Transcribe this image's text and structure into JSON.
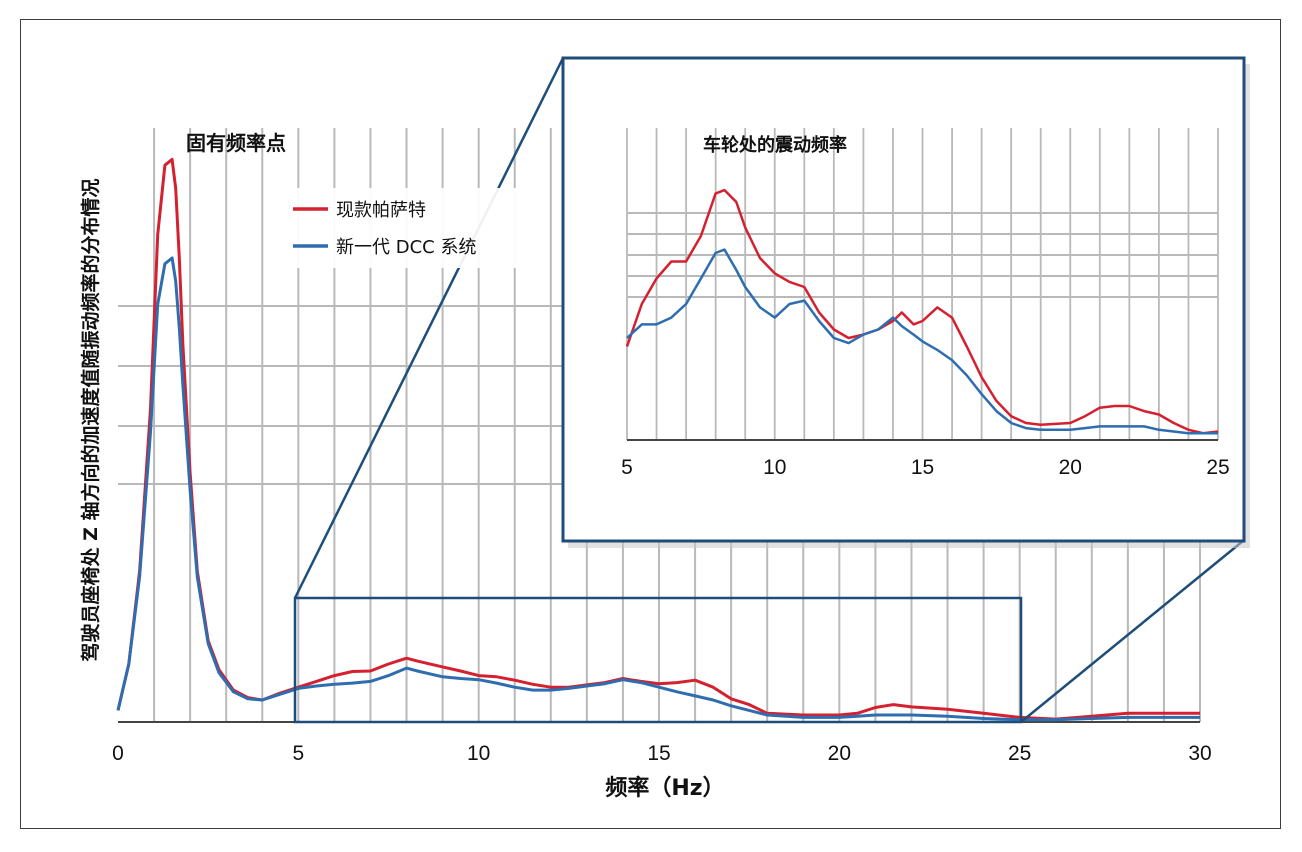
{
  "colors": {
    "current": "#d4202f",
    "dcc": "#2e6db0",
    "frame": "#1f4d7a",
    "grid": "#b9b9b9"
  },
  "chart_data": [
    {
      "type": "line",
      "title": "",
      "xlabel": "频率（Hz）",
      "ylabel": "驾驶员座椅处 Z 轴方向的加速度值随振动频率的分布情况",
      "xlim": [
        0,
        30
      ],
      "xticks": [
        "0",
        "5",
        "10",
        "15",
        "20",
        "25",
        "30"
      ],
      "annotation": "固有频率点",
      "legend": {
        "placement": "top-center",
        "entries": [
          "现款帕萨特",
          "新一代 DCC 系统"
        ]
      },
      "series": [
        {
          "name": "现款帕萨特",
          "color": "#d4202f",
          "x": [
            0,
            0.3,
            0.6,
            0.9,
            1.1,
            1.3,
            1.5,
            1.6,
            1.7,
            1.8,
            2.0,
            2.2,
            2.5,
            2.8,
            3.2,
            3.6,
            4.0,
            4.5,
            5.0,
            5.5,
            6.0,
            6.5,
            7.0,
            7.5,
            8.0,
            8.3,
            9.0,
            9.5,
            10.0,
            10.5,
            11.0,
            11.5,
            12.0,
            12.5,
            13.0,
            13.5,
            14.0,
            14.5,
            15.0,
            15.5,
            16.0,
            16.5,
            17.0,
            17.5,
            18.0,
            19.0,
            20.0,
            20.5,
            21.0,
            21.5,
            22.0,
            23.0,
            24.0,
            25.0,
            26.0,
            27.0,
            28.0,
            29.0,
            30.0
          ],
          "y": [
            0.2,
            1.0,
            2.6,
            5.4,
            8.4,
            9.6,
            9.7,
            9.2,
            8.0,
            6.5,
            4.3,
            2.6,
            1.4,
            0.9,
            0.55,
            0.42,
            0.38,
            0.5,
            0.6,
            0.7,
            0.8,
            0.87,
            0.88,
            1.0,
            1.1,
            1.05,
            0.95,
            0.88,
            0.8,
            0.78,
            0.72,
            0.65,
            0.6,
            0.6,
            0.64,
            0.68,
            0.75,
            0.7,
            0.66,
            0.68,
            0.72,
            0.6,
            0.4,
            0.3,
            0.15,
            0.12,
            0.12,
            0.15,
            0.25,
            0.3,
            0.26,
            0.22,
            0.15,
            0.08,
            0.05,
            0.1,
            0.15,
            0.15,
            0.15
          ]
        },
        {
          "name": "新一代 DCC 系统",
          "color": "#2e6db0",
          "x": [
            0,
            0.3,
            0.6,
            0.9,
            1.1,
            1.3,
            1.5,
            1.6,
            1.7,
            1.8,
            2.0,
            2.2,
            2.5,
            2.8,
            3.2,
            3.6,
            4.0,
            4.5,
            5.0,
            5.5,
            6.0,
            6.5,
            7.0,
            7.5,
            8.0,
            8.3,
            9.0,
            9.5,
            10.0,
            10.5,
            11.0,
            11.5,
            12.0,
            12.5,
            13.0,
            13.5,
            14.0,
            14.5,
            15.0,
            15.5,
            16.0,
            16.5,
            17.0,
            17.5,
            18.0,
            19.0,
            20.0,
            20.5,
            21.0,
            21.5,
            22.0,
            23.0,
            24.0,
            25.0,
            26.0,
            27.0,
            28.0,
            29.0,
            30.0
          ],
          "y": [
            0.2,
            1.0,
            2.5,
            5.0,
            7.2,
            7.9,
            8.0,
            7.6,
            6.8,
            5.8,
            4.0,
            2.5,
            1.35,
            0.85,
            0.52,
            0.4,
            0.38,
            0.48,
            0.58,
            0.62,
            0.65,
            0.67,
            0.7,
            0.8,
            0.93,
            0.88,
            0.78,
            0.75,
            0.73,
            0.67,
            0.6,
            0.55,
            0.55,
            0.58,
            0.62,
            0.66,
            0.73,
            0.68,
            0.6,
            0.52,
            0.45,
            0.38,
            0.28,
            0.2,
            0.12,
            0.08,
            0.08,
            0.1,
            0.12,
            0.12,
            0.12,
            0.1,
            0.06,
            0.04,
            0.04,
            0.06,
            0.08,
            0.08,
            0.08
          ]
        }
      ]
    },
    {
      "type": "line",
      "title": "车轮处的震动频率",
      "xlim": [
        5,
        25
      ],
      "xticks": [
        "5",
        "10",
        "15",
        "20",
        "25"
      ],
      "series": [
        {
          "name": "现款帕萨特",
          "color": "#d4202f",
          "x": [
            5.0,
            5.5,
            6.0,
            6.5,
            7.0,
            7.5,
            8.0,
            8.3,
            8.7,
            9.0,
            9.5,
            10.0,
            10.5,
            11.0,
            11.5,
            12.0,
            12.5,
            13.0,
            13.5,
            14.0,
            14.3,
            14.7,
            15.0,
            15.5,
            16.0,
            16.5,
            17.0,
            17.5,
            18.0,
            18.5,
            19.0,
            20.0,
            20.5,
            21.0,
            21.5,
            22.0,
            22.5,
            23.0,
            23.5,
            24.0,
            24.5,
            25.0
          ],
          "y": [
            0.55,
            0.8,
            0.95,
            1.05,
            1.05,
            1.2,
            1.45,
            1.47,
            1.4,
            1.25,
            1.07,
            0.98,
            0.93,
            0.9,
            0.75,
            0.65,
            0.6,
            0.62,
            0.65,
            0.7,
            0.75,
            0.68,
            0.7,
            0.78,
            0.72,
            0.55,
            0.37,
            0.23,
            0.14,
            0.1,
            0.09,
            0.1,
            0.14,
            0.19,
            0.2,
            0.2,
            0.17,
            0.15,
            0.1,
            0.06,
            0.04,
            0.05
          ]
        },
        {
          "name": "新一代 DCC 系统",
          "color": "#2e6db0",
          "x": [
            5.0,
            5.5,
            6.0,
            6.5,
            7.0,
            7.5,
            8.0,
            8.3,
            8.7,
            9.0,
            9.5,
            10.0,
            10.5,
            11.0,
            11.5,
            12.0,
            12.5,
            13.0,
            13.5,
            14.0,
            14.3,
            14.7,
            15.0,
            15.5,
            16.0,
            16.5,
            17.0,
            17.5,
            18.0,
            18.5,
            19.0,
            20.0,
            20.5,
            21.0,
            21.5,
            22.0,
            22.5,
            23.0,
            23.5,
            24.0,
            24.5,
            25.0
          ],
          "y": [
            0.6,
            0.68,
            0.68,
            0.72,
            0.8,
            0.95,
            1.1,
            1.12,
            1.0,
            0.9,
            0.78,
            0.72,
            0.8,
            0.82,
            0.7,
            0.6,
            0.57,
            0.62,
            0.65,
            0.72,
            0.67,
            0.62,
            0.58,
            0.53,
            0.47,
            0.38,
            0.27,
            0.17,
            0.1,
            0.07,
            0.06,
            0.06,
            0.07,
            0.08,
            0.08,
            0.08,
            0.08,
            0.06,
            0.05,
            0.04,
            0.04,
            0.04
          ]
        }
      ]
    }
  ]
}
